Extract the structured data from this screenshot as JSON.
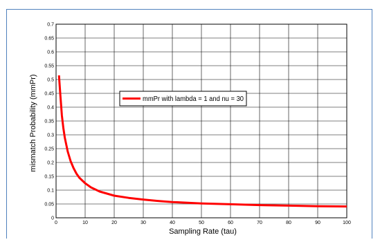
{
  "chart_data": {
    "type": "line",
    "title": "",
    "xlabel": "Sampling Rate (tau)",
    "ylabel": "mismatch Probability (mmPr)",
    "xlim": [
      0,
      100
    ],
    "ylim": [
      0,
      0.7
    ],
    "xticks": [
      0,
      10,
      20,
      30,
      40,
      50,
      60,
      70,
      80,
      90,
      100
    ],
    "xtick_labels": [
      "0",
      "10",
      "20",
      "30",
      "40",
      "50",
      "60",
      "70",
      "80",
      "90",
      "100"
    ],
    "yticks": [
      0,
      0.05,
      0.1,
      0.15,
      0.2,
      0.25,
      0.3,
      0.35,
      0.4,
      0.45,
      0.5,
      0.55,
      0.6,
      0.65,
      0.7
    ],
    "ytick_labels": [
      "0",
      "0.05",
      "0.1",
      "0.15",
      "0.2",
      "0.25",
      "0.3",
      "0.35",
      "0.4",
      "0.45",
      "0.5",
      "0.55",
      "0.6",
      "0.65",
      "0.7"
    ],
    "grid": true,
    "legend_position": "center",
    "series": [
      {
        "name": "mmPr with lambda = 1 and nu = 30",
        "color": "#ff0000",
        "x": [
          1,
          1.5,
          2,
          2.5,
          3,
          4,
          5,
          6,
          7,
          8,
          10,
          12,
          15,
          20,
          25,
          30,
          35,
          40,
          50,
          60,
          70,
          80,
          90,
          100
        ],
        "y": [
          0.515,
          0.44,
          0.37,
          0.325,
          0.29,
          0.24,
          0.205,
          0.18,
          0.16,
          0.145,
          0.125,
          0.11,
          0.095,
          0.08,
          0.072,
          0.066,
          0.061,
          0.057,
          0.052,
          0.049,
          0.046,
          0.044,
          0.042,
          0.041
        ]
      }
    ]
  }
}
